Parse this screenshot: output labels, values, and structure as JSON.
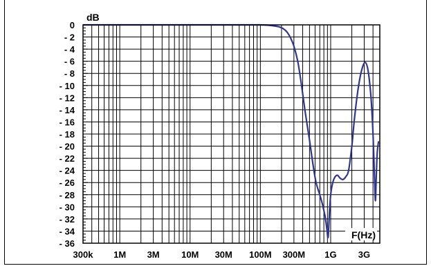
{
  "chart_data": {
    "type": "line",
    "ylabel": "dB",
    "xlabel": "F(Hz)",
    "x_scale": "log",
    "xlim": [
      300000,
      5000000000
    ],
    "ylim": [
      -36,
      0
    ],
    "grid": true,
    "x_ticks": [
      {
        "value": 300000,
        "label": "300k"
      },
      {
        "value": 1000000,
        "label": "1M"
      },
      {
        "value": 3000000,
        "label": "3M"
      },
      {
        "value": 10000000,
        "label": "10M"
      },
      {
        "value": 30000000,
        "label": "30M"
      },
      {
        "value": 100000000,
        "label": "100M"
      },
      {
        "value": 300000000,
        "label": "300M"
      },
      {
        "value": 1000000000,
        "label": "1G"
      },
      {
        "value": 3000000000,
        "label": "3G"
      }
    ],
    "y_ticks": [
      {
        "value": 0,
        "label": "0"
      },
      {
        "value": -2,
        "label": "- 2"
      },
      {
        "value": -4,
        "label": "- 4"
      },
      {
        "value": -6,
        "label": "- 6"
      },
      {
        "value": -8,
        "label": "- 8"
      },
      {
        "value": -10,
        "label": "- 10"
      },
      {
        "value": -12,
        "label": "- 12"
      },
      {
        "value": -14,
        "label": "- 14"
      },
      {
        "value": -16,
        "label": "- 16"
      },
      {
        "value": -18,
        "label": "- 18"
      },
      {
        "value": -20,
        "label": "- 20"
      },
      {
        "value": -22,
        "label": "- 22"
      },
      {
        "value": -24,
        "label": "- 24"
      },
      {
        "value": -26,
        "label": "- 26"
      },
      {
        "value": -28,
        "label": "- 28"
      },
      {
        "value": -30,
        "label": "- 30"
      },
      {
        "value": -32,
        "label": "- 32"
      },
      {
        "value": -34,
        "label": "- 34"
      },
      {
        "value": -36,
        "label": "- 36"
      }
    ],
    "series": [
      {
        "color": "#2f3594",
        "points": [
          [
            300000,
            0
          ],
          [
            1000000,
            0
          ],
          [
            10000000,
            0
          ],
          [
            60000000,
            0
          ],
          [
            100000000,
            0
          ],
          [
            140000000,
            -0.1
          ],
          [
            180000000,
            -0.3
          ],
          [
            210000000,
            -0.6
          ],
          [
            240000000,
            -1.2
          ],
          [
            270000000,
            -2.2
          ],
          [
            300000000,
            -3.5
          ],
          [
            340000000,
            -6
          ],
          [
            380000000,
            -9.5
          ],
          [
            430000000,
            -14
          ],
          [
            500000000,
            -19
          ],
          [
            560000000,
            -23
          ],
          [
            620000000,
            -26
          ],
          [
            700000000,
            -28
          ],
          [
            760000000,
            -29.5
          ],
          [
            830000000,
            -31.5
          ],
          [
            880000000,
            -33.5
          ],
          [
            920000000,
            -35
          ],
          [
            960000000,
            -31
          ],
          [
            1000000000,
            -28
          ],
          [
            1070000000,
            -26
          ],
          [
            1150000000,
            -25.1
          ],
          [
            1250000000,
            -24.8
          ],
          [
            1370000000,
            -25.3
          ],
          [
            1500000000,
            -25.5
          ],
          [
            1650000000,
            -25
          ],
          [
            1800000000,
            -24
          ],
          [
            2000000000,
            -20
          ],
          [
            2200000000,
            -15
          ],
          [
            2500000000,
            -10
          ],
          [
            2800000000,
            -7.2
          ],
          [
            3100000000,
            -6.2
          ],
          [
            3400000000,
            -7.5
          ],
          [
            3750000000,
            -12
          ],
          [
            4000000000,
            -18
          ],
          [
            4200000000,
            -25
          ],
          [
            4330000000,
            -29
          ],
          [
            4450000000,
            -25
          ],
          [
            4600000000,
            -21
          ],
          [
            4800000000,
            -19.2
          ]
        ]
      }
    ]
  }
}
